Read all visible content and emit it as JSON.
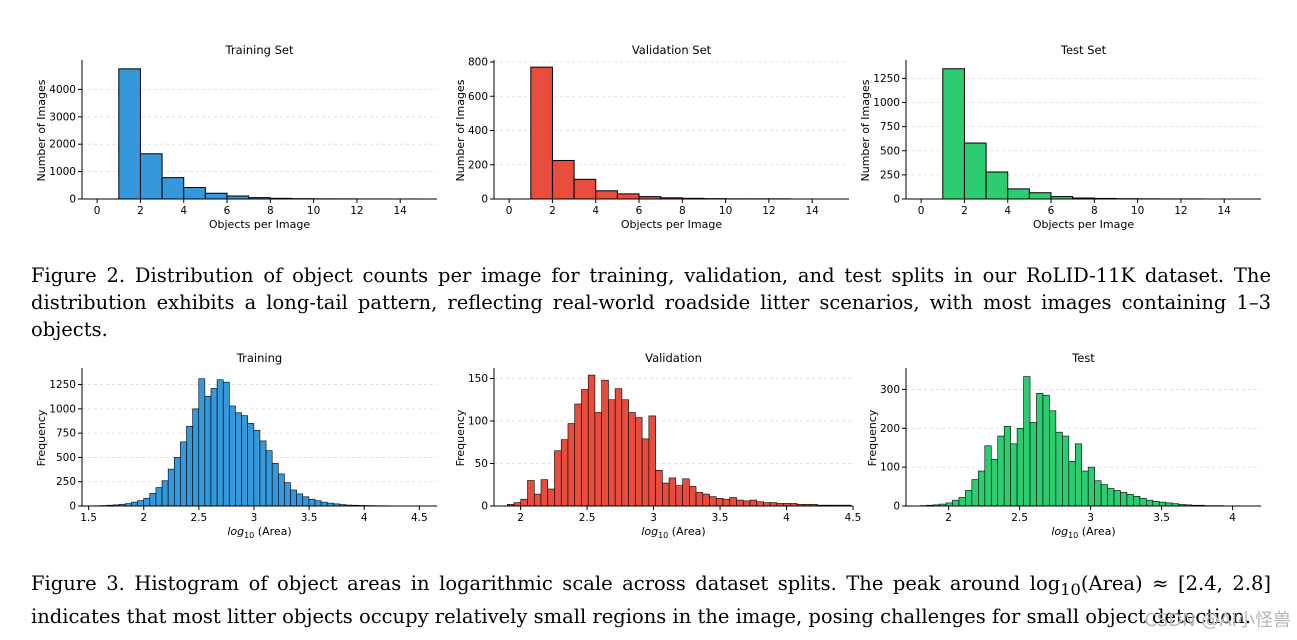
{
  "figure2": {
    "caption": "Figure 2. Distribution of object counts per image for training, validation, and test splits in our RoLID-11K dataset. The distribution exhibits a long-tail pattern, reflecting real-world roadside litter scenarios, with most images containing 1–3 objects."
  },
  "figure3": {
    "caption_part1": "Figure 3. Histogram of object areas in logarithmic scale across dataset splits. The peak around log",
    "caption_sub": "10",
    "caption_part2": "(Area) ≈ [2.4, 2.8] indicates that most litter objects occupy relatively small regions in the image, posing challenges for small object detection."
  },
  "watermark": "CSDN @AI小怪兽",
  "chart_data": [
    {
      "type": "bar",
      "title": "Training Set",
      "xlabel": "Objects per Image",
      "ylabel": "Number of Images",
      "xlim": [
        -0.7,
        15.7
      ],
      "ylim": [
        0,
        5000
      ],
      "xticks": [
        0,
        2,
        4,
        6,
        8,
        10,
        12,
        14
      ],
      "yticks": [
        0,
        1000,
        2000,
        3000,
        4000
      ],
      "color": "#3498db",
      "bin_start": 1,
      "bin_width": 1,
      "values": [
        4750,
        1650,
        780,
        420,
        210,
        110,
        50,
        25,
        12,
        6,
        4,
        2,
        1,
        1
      ],
      "grid": "y-dashed"
    },
    {
      "type": "bar",
      "title": "Validation Set",
      "xlabel": "Objects per Image",
      "ylabel": "Number of Images",
      "xlim": [
        -0.7,
        15.7
      ],
      "ylim": [
        0,
        800
      ],
      "xticks": [
        0,
        2,
        4,
        6,
        8,
        10,
        12,
        14
      ],
      "yticks": [
        0,
        200,
        400,
        600,
        800
      ],
      "color": "#e74c3c",
      "bin_start": 1,
      "bin_width": 1,
      "values": [
        770,
        225,
        115,
        48,
        30,
        14,
        7,
        4,
        2,
        1,
        1,
        1,
        0,
        0
      ],
      "grid": "y-dashed"
    },
    {
      "type": "bar",
      "title": "Test Set",
      "xlabel": "Objects per Image",
      "ylabel": "Number of Images",
      "xlim": [
        -0.7,
        15.7
      ],
      "ylim": [
        0,
        1420
      ],
      "xticks": [
        0,
        2,
        4,
        6,
        8,
        10,
        12,
        14
      ],
      "yticks": [
        0,
        250,
        500,
        750,
        1000,
        1250
      ],
      "color": "#2ecc71",
      "bin_start": 1,
      "bin_width": 1,
      "values": [
        1350,
        580,
        280,
        105,
        65,
        25,
        10,
        6,
        3,
        2,
        1,
        1,
        0,
        0
      ],
      "grid": "y-dashed"
    },
    {
      "type": "bar",
      "title": "Training",
      "xlabel": "log10 (Area)",
      "ylabel": "Frequency",
      "xlim": [
        1.44,
        4.66
      ],
      "ylim": [
        0,
        1400
      ],
      "xticks": [
        1.5,
        2.0,
        2.5,
        3.0,
        3.5,
        4.0,
        4.5
      ],
      "yticks": [
        0,
        250,
        500,
        750,
        1000,
        1250
      ],
      "color": "#3498db",
      "bin_start": 1.5,
      "bin_width": 0.0555,
      "values": [
        2,
        3,
        5,
        8,
        12,
        18,
        25,
        40,
        55,
        80,
        130,
        190,
        260,
        380,
        500,
        660,
        820,
        1000,
        1310,
        1130,
        1210,
        1300,
        1275,
        1030,
        960,
        930,
        850,
        780,
        670,
        570,
        440,
        330,
        240,
        165,
        125,
        95,
        70,
        55,
        40,
        30,
        22,
        15,
        10,
        8,
        6,
        5,
        4,
        3,
        3,
        2,
        2,
        1,
        1,
        1,
        1,
        0
      ],
      "grid": "y-dashed"
    },
    {
      "type": "bar",
      "title": "Validation",
      "xlabel": "log10 (Area)",
      "ylabel": "Frequency",
      "xlim": [
        1.8,
        4.5
      ],
      "ylim": [
        0,
        160
      ],
      "xticks": [
        2.0,
        2.5,
        3.0,
        3.5,
        4.0,
        4.5
      ],
      "yticks": [
        0,
        50,
        100,
        150
      ],
      "color": "#e74c3c",
      "bin_start": 1.9,
      "bin_width": 0.0507,
      "values": [
        2,
        4,
        8,
        30,
        14,
        31,
        20,
        65,
        78,
        97,
        120,
        137,
        154,
        110,
        148,
        125,
        138,
        125,
        110,
        104,
        79,
        106,
        42,
        27,
        33,
        24,
        32,
        23,
        16,
        14,
        11,
        9,
        8,
        10,
        7,
        6,
        7,
        5,
        4,
        4,
        3,
        3,
        3,
        2,
        2,
        2,
        1,
        1,
        1,
        1,
        1,
        0
      ],
      "grid": "y-dashed"
    },
    {
      "type": "bar",
      "title": "Test",
      "xlabel": "log10 (Area)",
      "ylabel": "Frequency",
      "xlim": [
        1.7,
        4.2
      ],
      "ylim": [
        0,
        350
      ],
      "xticks": [
        2.0,
        2.5,
        3.0,
        3.5,
        4.0
      ],
      "yticks": [
        0,
        100,
        200,
        300
      ],
      "color": "#2ecc71",
      "bin_start": 1.8,
      "bin_width": 0.0455,
      "values": [
        1,
        2,
        3,
        5,
        8,
        15,
        22,
        40,
        68,
        90,
        155,
        120,
        180,
        205,
        160,
        200,
        333,
        215,
        290,
        285,
        245,
        190,
        180,
        115,
        160,
        90,
        100,
        65,
        55,
        45,
        40,
        35,
        30,
        25,
        20,
        15,
        12,
        10,
        8,
        6,
        4,
        3,
        2,
        2,
        1,
        1,
        1,
        0
      ],
      "grid": "y-dashed"
    }
  ]
}
